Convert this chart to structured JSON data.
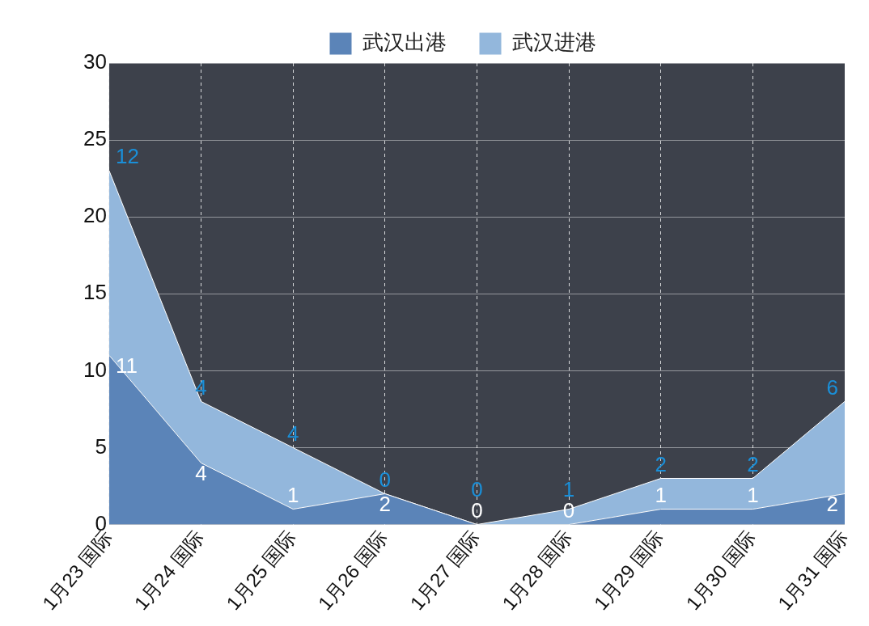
{
  "chart_data": {
    "type": "area",
    "stacked": true,
    "categories": [
      "1月23 国际",
      "1月24 国际",
      "1月25 国际",
      "1月26 国际",
      "1月27 国际",
      "1月28 国际",
      "1月29 国际",
      "1月30 国际",
      "1月31 国际"
    ],
    "series": [
      {
        "name": "武汉出港",
        "color": "#5b84b8",
        "values": [
          11,
          4,
          1,
          2,
          0,
          0,
          1,
          1,
          2
        ]
      },
      {
        "name": "武汉进港",
        "color": "#93b7dc",
        "values": [
          12,
          4,
          4,
          0,
          0,
          1,
          2,
          2,
          6
        ]
      }
    ],
    "ylim": [
      0,
      30
    ],
    "yticks": [
      0,
      5,
      10,
      15,
      20,
      25,
      30
    ],
    "grid": true,
    "legend": "top",
    "data_labels": true
  }
}
